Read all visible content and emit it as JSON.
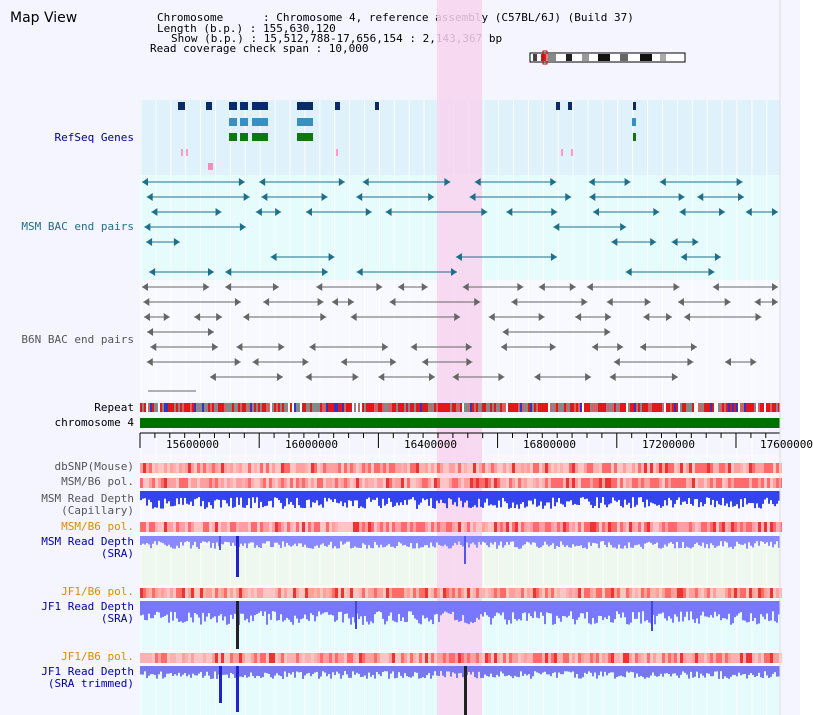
{
  "title": "Map View",
  "info": {
    "chromosome": "Chromosome      : Chromosome 4, reference assembly (C57BL/6J) (Build 37)",
    "length": "Length (b.p.) : 155,630,120",
    "show": "Show (b.p.) : 15,512,788-17,656,154 : 2,143,367 bp",
    "coverage": "Read coverage check span : 10,000"
  },
  "tracks": {
    "refseq": "RefSeq Genes",
    "msm_bac": "MSM BAC end pairs",
    "b6n_bac": "B6N BAC end pairs",
    "repeat": "Repeat",
    "chromosome": "chromosome 4",
    "dbsnp": "dbSNP(Mouse)",
    "msm_b6_pol": "MSM/B6 pol.",
    "msm_read_depth_cap_1": "MSM Read Depth",
    "msm_read_depth_cap_2": "(Capillary)",
    "msm_b6_pol_2": "MSM/B6 pol.",
    "msm_read_depth_sra_1": "MSM Read Depth",
    "msm_read_depth_sra_2": "(SRA)",
    "jf1_b6_pol": "JF1/B6 pol.",
    "jf1_read_depth_sra_1": "JF1 Read Depth",
    "jf1_read_depth_sra_2": "(SRA)",
    "jf1_b6_pol_2": "JF1/B6 pol.",
    "jf1_read_depth_trim_1": "JF1 Read Depth",
    "jf1_read_depth_trim_2": "(SRA trimmed)"
  },
  "axis_ticks": [
    "15600000",
    "16000000",
    "16400000",
    "16800000",
    "17200000",
    "17600000"
  ],
  "colors": {
    "refseq_label": "#00008b",
    "msm_label": "#1f6f8b",
    "b6n_label": "#555555",
    "orange_label": "#e08a00",
    "blue_label": "#0000aa",
    "highlight": "#f8d4f0",
    "chrom_bar": "#007000"
  }
}
